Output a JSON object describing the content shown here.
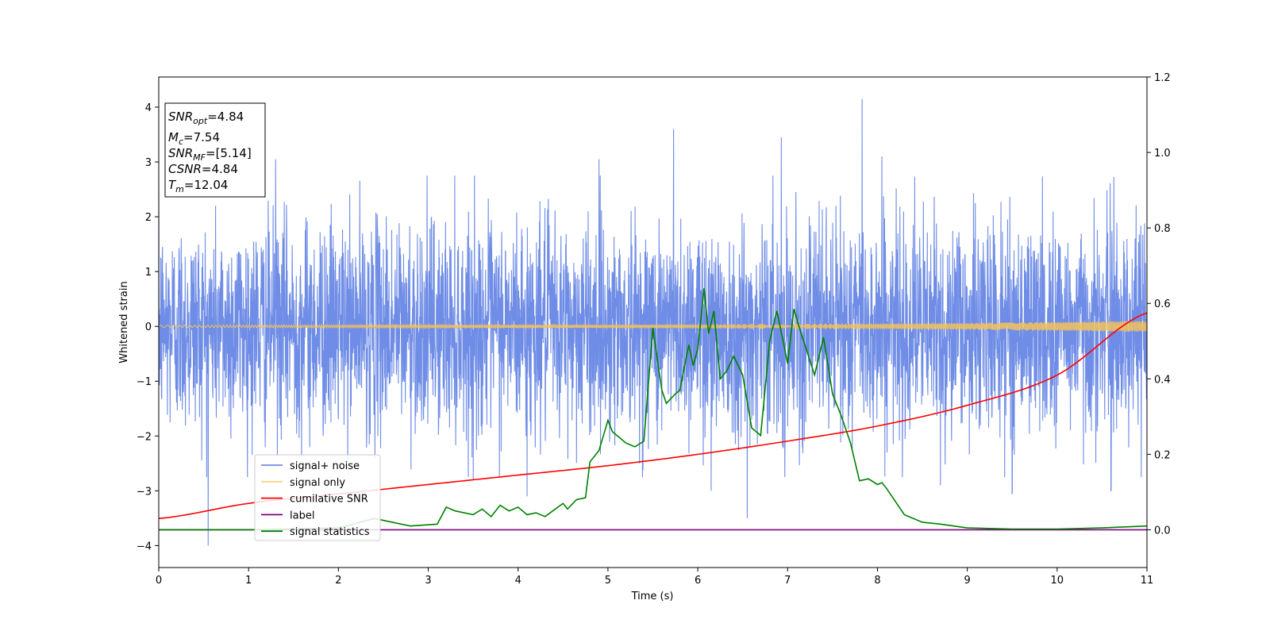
{
  "chart_data": {
    "type": "line",
    "xlabel": "Time (s)",
    "ylabel": "Whitened strain",
    "xlim": [
      0,
      11
    ],
    "ylim_left": [
      -4.4,
      4.55
    ],
    "ylim_right": [
      -0.1,
      1.2
    ],
    "x_ticks": [
      0,
      1,
      2,
      3,
      4,
      5,
      6,
      7,
      8,
      9,
      10,
      11
    ],
    "y_ticks_left": [
      4,
      3,
      2,
      1,
      0,
      -1,
      -2,
      -3,
      -4
    ],
    "y_ticks_right": [
      1.2,
      1.0,
      0.8,
      0.6,
      0.4,
      0.2,
      0.0
    ],
    "legend_position": "lower-left",
    "legend": [
      "signal+ noise",
      "signal only",
      "cumilative SNR",
      "label",
      "signal statistics"
    ],
    "annotation": {
      "snr_opt": {
        "symbol": "SNR",
        "sub": "opt",
        "value": "=4.84"
      },
      "mc": {
        "symbol": "M",
        "sub": "c",
        "value": "=7.54"
      },
      "snr_mf": {
        "symbol": "SNR",
        "sub": "MF",
        "value": "=[5.14]"
      },
      "csnr": {
        "symbol": "CSNR",
        "value": "=4.84"
      },
      "tm": {
        "symbol": "T",
        "sub": "m",
        "value": "=12.04"
      }
    },
    "series": [
      {
        "name": "signal+ noise",
        "axis": "left",
        "color": "#6f8de6",
        "noise_amplitude": 1.0,
        "peaks": [
          [
            1.3,
            3.05
          ],
          [
            4.9,
            3.05
          ],
          [
            5.73,
            3.6
          ],
          [
            6.93,
            3.45
          ],
          [
            7.83,
            4.15
          ],
          [
            8.05,
            3.1
          ],
          [
            0.55,
            -4.0
          ],
          [
            6.55,
            -3.5
          ],
          [
            4.1,
            -3.1
          ],
          [
            3.5,
            -2.8
          ],
          [
            6.15,
            -3.0
          ],
          [
            8.7,
            -2.9
          ],
          [
            9.5,
            -3.05
          ],
          [
            10.6,
            -3.0
          ]
        ]
      },
      {
        "name": "signal only",
        "axis": "left",
        "color": "#f5c25a",
        "amplitude": [
          [
            0,
            0.02
          ],
          [
            5,
            0.03
          ],
          [
            9,
            0.06
          ],
          [
            11,
            0.1
          ]
        ]
      },
      {
        "name": "cumilative SNR",
        "axis": "right",
        "color": "#ff0000",
        "x": [
          0,
          1,
          2,
          3,
          4,
          5,
          6,
          7,
          8,
          9,
          10,
          11
        ],
        "y": [
          0.03,
          0.07,
          0.095,
          0.12,
          0.145,
          0.17,
          0.2,
          0.235,
          0.275,
          0.33,
          0.41,
          0.575
        ]
      },
      {
        "name": "label",
        "axis": "right",
        "color": "#800080",
        "x": [
          0,
          11
        ],
        "y": [
          0.0,
          0.0
        ]
      },
      {
        "name": "signal statistics",
        "axis": "right",
        "color": "#008000",
        "x": [
          0,
          1,
          2,
          2.4,
          2.6,
          2.8,
          3.1,
          3.2,
          3.3,
          3.5,
          3.6,
          3.7,
          3.8,
          3.9,
          4.0,
          4.1,
          4.2,
          4.3,
          4.5,
          4.55,
          4.65,
          4.75,
          4.8,
          4.9,
          5.0,
          5.05,
          5.1,
          5.2,
          5.3,
          5.4,
          5.5,
          5.6,
          5.65,
          5.75,
          5.8,
          5.9,
          5.95,
          6.0,
          6.07,
          6.12,
          6.18,
          6.25,
          6.32,
          6.4,
          6.5,
          6.6,
          6.7,
          6.8,
          6.88,
          6.95,
          7.0,
          7.07,
          7.15,
          7.22,
          7.3,
          7.4,
          7.5,
          7.6,
          7.7,
          7.8,
          7.9,
          8.0,
          8.05,
          8.1,
          8.3,
          8.5,
          8.7,
          9.0,
          9.5,
          10.0,
          10.5,
          11.0
        ],
        "y": [
          0.0,
          0.0,
          0.005,
          0.03,
          0.02,
          0.01,
          0.015,
          0.06,
          0.05,
          0.04,
          0.055,
          0.035,
          0.065,
          0.05,
          0.06,
          0.04,
          0.045,
          0.035,
          0.07,
          0.055,
          0.08,
          0.085,
          0.18,
          0.21,
          0.29,
          0.26,
          0.25,
          0.23,
          0.22,
          0.235,
          0.535,
          0.37,
          0.335,
          0.36,
          0.37,
          0.49,
          0.435,
          0.48,
          0.64,
          0.52,
          0.58,
          0.4,
          0.42,
          0.46,
          0.41,
          0.27,
          0.25,
          0.5,
          0.58,
          0.5,
          0.44,
          0.585,
          0.52,
          0.47,
          0.41,
          0.51,
          0.36,
          0.3,
          0.23,
          0.13,
          0.135,
          0.12,
          0.125,
          0.11,
          0.04,
          0.02,
          0.015,
          0.005,
          0.002,
          0.002,
          0.005,
          0.01
        ]
      }
    ]
  }
}
